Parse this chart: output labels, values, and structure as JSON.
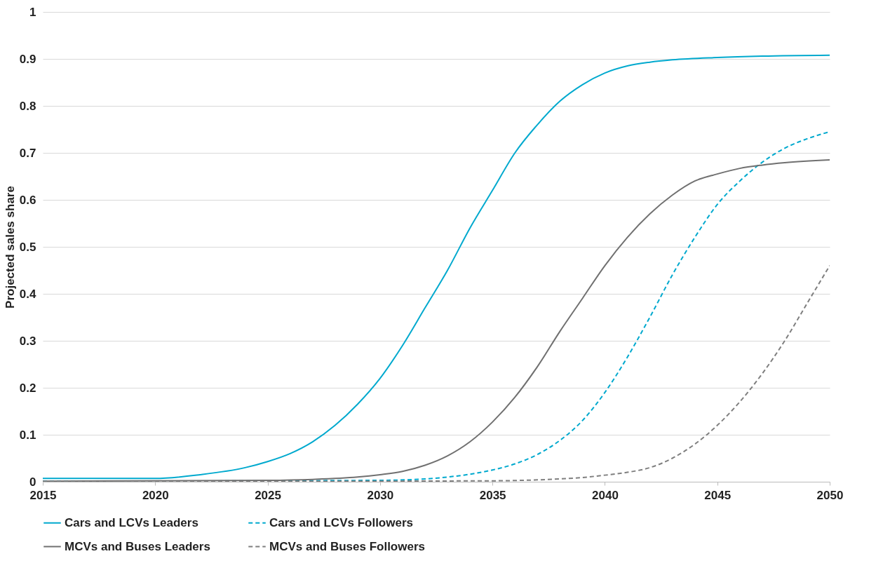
{
  "chart_data": {
    "type": "line",
    "ylabel": "Projected sales share",
    "xlim": [
      2015,
      2050
    ],
    "xticks": [
      2015,
      2020,
      2025,
      2030,
      2035,
      2040,
      2045,
      2050
    ],
    "ylim": [
      0,
      1
    ],
    "yticks": [
      0,
      0.1,
      0.2,
      0.3,
      0.4,
      0.5,
      0.6,
      0.7,
      0.8,
      0.9,
      1
    ],
    "grid": "y",
    "legend": "bottom",
    "marker": "none",
    "series": [
      {
        "name": "Cars and LCVs Leaders",
        "color": "#00a9ce",
        "line_style": "solid",
        "x": [
          2015,
          2020,
          2022,
          2024,
          2025,
          2026,
          2027,
          2028,
          2029,
          2030,
          2031,
          2032,
          2033,
          2034,
          2035,
          2036,
          2037,
          2038,
          2039,
          2040,
          2041,
          2042,
          2043,
          2045,
          2047,
          2050
        ],
        "values": [
          0.007,
          0.007,
          0.015,
          0.03,
          0.043,
          0.06,
          0.085,
          0.12,
          0.165,
          0.22,
          0.29,
          0.37,
          0.45,
          0.54,
          0.62,
          0.7,
          0.76,
          0.81,
          0.845,
          0.87,
          0.885,
          0.893,
          0.898,
          0.903,
          0.906,
          0.908
        ]
      },
      {
        "name": "Cars and LCVs Followers",
        "color": "#00a9ce",
        "line_style": "dashed",
        "x": [
          2015,
          2030,
          2032,
          2033,
          2034,
          2035,
          2036,
          2037,
          2038,
          2039,
          2040,
          2041,
          2042,
          2043,
          2044,
          2045,
          2046,
          2047,
          2048,
          2049,
          2050
        ],
        "values": [
          0.001,
          0.003,
          0.006,
          0.01,
          0.016,
          0.025,
          0.038,
          0.058,
          0.088,
          0.13,
          0.19,
          0.265,
          0.35,
          0.44,
          0.52,
          0.59,
          0.64,
          0.68,
          0.71,
          0.73,
          0.745
        ]
      },
      {
        "name": "MCVs and Buses Leaders",
        "color": "#707070",
        "line_style": "solid",
        "x": [
          2015,
          2025,
          2027,
          2029,
          2030,
          2031,
          2032,
          2033,
          2034,
          2035,
          2036,
          2037,
          2038,
          2039,
          2040,
          2041,
          2042,
          2043,
          2044,
          2045,
          2046,
          2047,
          2048,
          2050
        ],
        "values": [
          0.001,
          0.003,
          0.005,
          0.01,
          0.015,
          0.022,
          0.035,
          0.055,
          0.085,
          0.127,
          0.18,
          0.245,
          0.32,
          0.39,
          0.46,
          0.52,
          0.57,
          0.61,
          0.64,
          0.655,
          0.667,
          0.674,
          0.679,
          0.685
        ]
      },
      {
        "name": "MCVs and Buses Followers",
        "color": "#7f7f7f",
        "line_style": "dashed",
        "x": [
          2015,
          2035,
          2037,
          2038,
          2039,
          2040,
          2041,
          2042,
          2043,
          2044,
          2045,
          2046,
          2047,
          2048,
          2049,
          2050
        ],
        "values": [
          0,
          0.002,
          0.004,
          0.006,
          0.009,
          0.014,
          0.02,
          0.03,
          0.05,
          0.08,
          0.12,
          0.17,
          0.23,
          0.3,
          0.38,
          0.46
        ]
      }
    ]
  }
}
